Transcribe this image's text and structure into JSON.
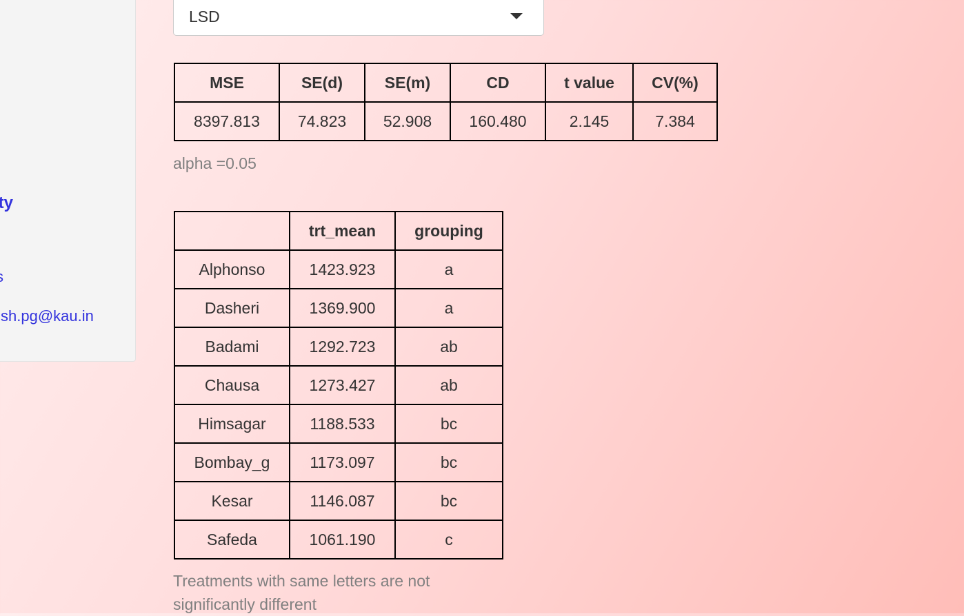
{
  "sidebar": {
    "title_fragment": "ity",
    "text_fragment": "s",
    "email_fragment": "sh.pg@kau.in",
    "link_color": "#3333dd"
  },
  "method_select": {
    "value": "LSD"
  },
  "stats_table": {
    "headers": [
      "MSE",
      "SE(d)",
      "SE(m)",
      "CD",
      "t value",
      "CV(%)"
    ],
    "values": [
      "8397.813",
      "74.823",
      "52.908",
      "160.480",
      "2.145",
      "7.384"
    ]
  },
  "alpha_note": "alpha =0.05",
  "group_table": {
    "headers": [
      "",
      "trt_mean",
      "grouping"
    ],
    "rows": [
      [
        "Alphonso",
        "1423.923",
        "a"
      ],
      [
        "Dasheri",
        "1369.900",
        "a"
      ],
      [
        "Badami",
        "1292.723",
        "ab"
      ],
      [
        "Chausa",
        "1273.427",
        "ab"
      ],
      [
        "Himsagar",
        "1188.533",
        "bc"
      ],
      [
        "Bombay_g",
        "1173.097",
        "bc"
      ],
      [
        "Kesar",
        "1146.087",
        "bc"
      ],
      [
        "Safeda",
        "1061.190",
        "c"
      ]
    ]
  },
  "group_note": "Treatments with same letters are not significantly different"
}
